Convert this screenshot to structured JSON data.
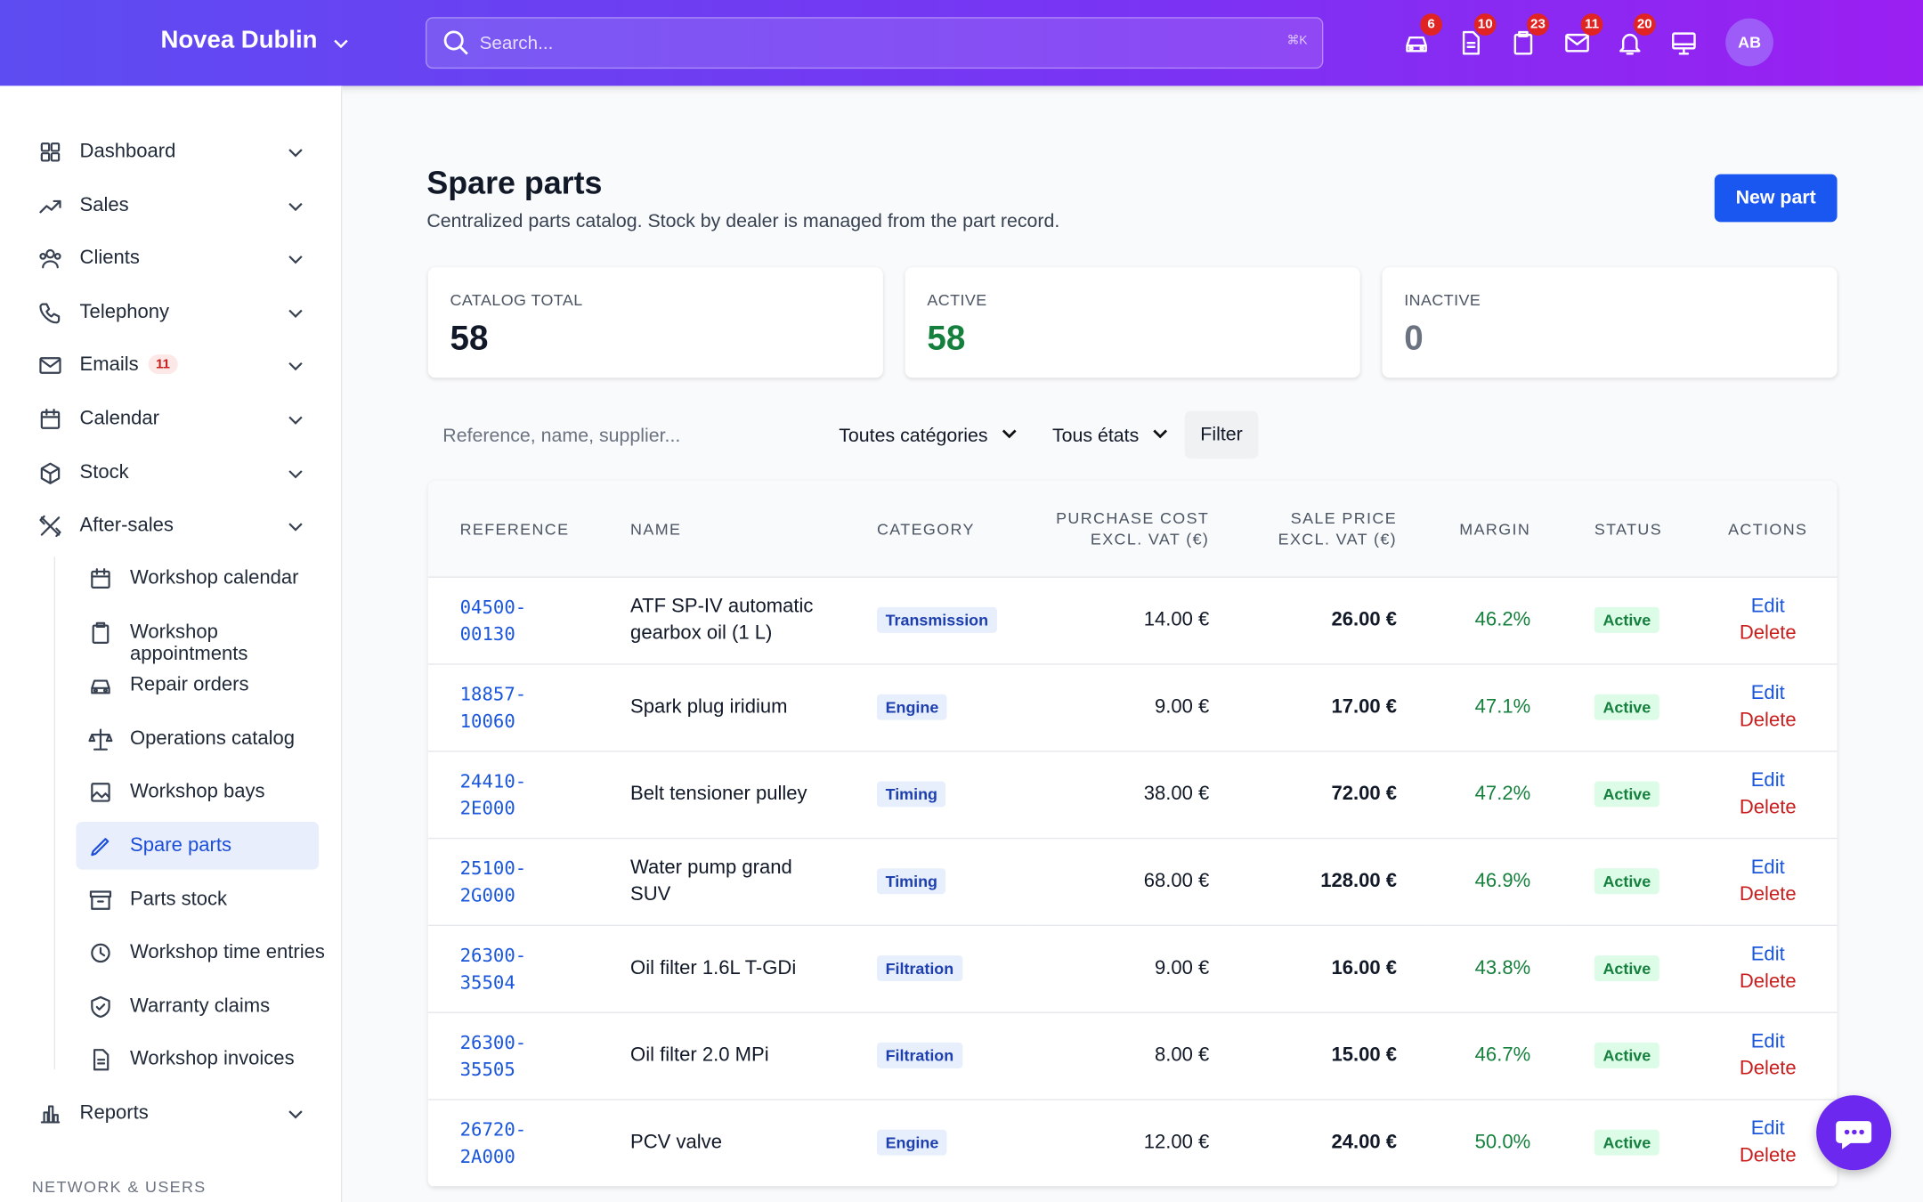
{
  "header": {
    "brand": "Novea Dublin",
    "search_placeholder": "Search...",
    "shortcut": "⌘K",
    "badges": [
      "6",
      "10",
      "23",
      "11",
      "20"
    ],
    "avatar": "AB"
  },
  "sidebar": {
    "items": [
      {
        "label": "Dashboard"
      },
      {
        "label": "Sales"
      },
      {
        "label": "Clients"
      },
      {
        "label": "Telephony"
      },
      {
        "label": "Emails",
        "badge": "11"
      },
      {
        "label": "Calendar"
      },
      {
        "label": "Stock"
      },
      {
        "label": "After-sales"
      }
    ],
    "after_sales": [
      "Workshop calendar",
      "Workshop appointments",
      "Repair orders",
      "Operations catalog",
      "Workshop bays",
      "Spare parts",
      "Parts stock",
      "Workshop time entries",
      "Warranty claims",
      "Workshop invoices"
    ],
    "reports": "Reports",
    "section": "NETWORK & USERS"
  },
  "page": {
    "title": "Spare parts",
    "subtitle": "Centralized parts catalog. Stock by dealer is managed from the part record.",
    "new_button": "New part"
  },
  "stats": [
    {
      "label": "CATALOG TOTAL",
      "value": "58"
    },
    {
      "label": "ACTIVE",
      "value": "58"
    },
    {
      "label": "INACTIVE",
      "value": "0"
    }
  ],
  "filters": {
    "search_placeholder": "Reference, name, supplier...",
    "category": "Toutes catégories",
    "state": "Tous états",
    "button": "Filter"
  },
  "table": {
    "headers": [
      "REFERENCE",
      "NAME",
      "CATEGORY",
      "PURCHASE COST EXCL. VAT (€)",
      "SALE PRICE EXCL. VAT (€)",
      "MARGIN",
      "STATUS",
      "ACTIONS"
    ],
    "rows": [
      [
        "04500-00130",
        "ATF SP-IV automatic gearbox oil (1 L)",
        "Transmission",
        "14.00 €",
        "26.00 €",
        "46.2%",
        "Active"
      ],
      [
        "18857-10060",
        "Spark plug iridium",
        "Engine",
        "9.00 €",
        "17.00 €",
        "47.1%",
        "Active"
      ],
      [
        "24410-2E000",
        "Belt tensioner pulley",
        "Timing",
        "38.00 €",
        "72.00 €",
        "47.2%",
        "Active"
      ],
      [
        "25100-2G000",
        "Water pump grand SUV",
        "Timing",
        "68.00 €",
        "128.00 €",
        "46.9%",
        "Active"
      ],
      [
        "26300-35504",
        "Oil filter 1.6L T-GDi",
        "Filtration",
        "9.00 €",
        "16.00 €",
        "43.8%",
        "Active"
      ],
      [
        "26300-35505",
        "Oil filter 2.0 MPi",
        "Filtration",
        "8.00 €",
        "15.00 €",
        "46.7%",
        "Active"
      ],
      [
        "26720-2A000",
        "PCV valve",
        "Engine",
        "12.00 €",
        "24.00 €",
        "50.0%",
        "Active"
      ]
    ],
    "edit": "Edit",
    "delete": "Delete"
  }
}
